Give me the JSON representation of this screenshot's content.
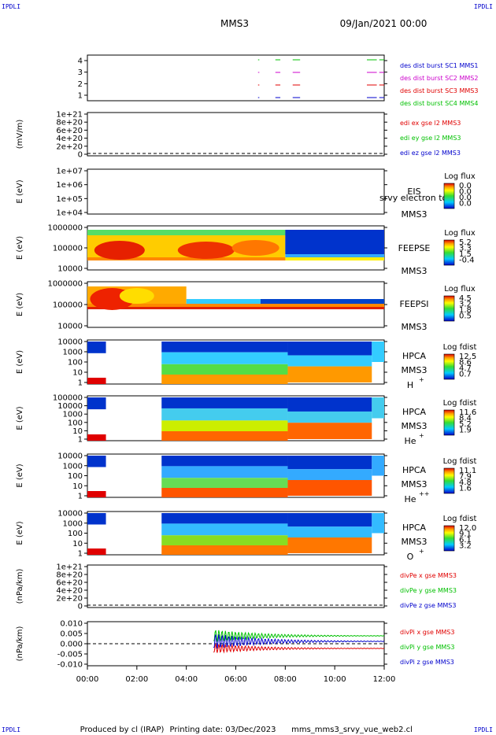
{
  "corner_label": "IPDLI",
  "header": {
    "title": "MMS3",
    "date": "09/Jan/2021 00:00"
  },
  "footer": {
    "produced_by": "Produced by cl (IRAP)",
    "printing_date": "Printing date: 03/Dec/2023",
    "script": "mms_mms3_srvy_vue_web2.cl"
  },
  "time_axis": [
    "00:00",
    "02:00",
    "04:00",
    "06:00",
    "08:00",
    "10:00",
    "12:00"
  ],
  "colors": {
    "black": "#000000",
    "red": "#e00000",
    "green": "#00c000",
    "blue": "#0000cc",
    "magenta": "#cc00cc"
  },
  "chart_data": [
    {
      "type": "line",
      "panel": "burst",
      "yticks": [
        "4",
        "3",
        "2",
        "1"
      ],
      "legend": [
        {
          "text": "des dist burst SC1 MMS1",
          "color": "#0000cc"
        },
        {
          "text": "des dist burst SC2 MMS2",
          "color": "#cc00cc"
        },
        {
          "text": "des dist burst SC3 MMS3",
          "color": "#e00000"
        },
        {
          "text": "des dist burst SC4 MMS4",
          "color": "#00c000"
        }
      ]
    },
    {
      "type": "line",
      "panel": "edi",
      "ylabel": "(mV/m)",
      "yticks": [
        "1e+21",
        "8e+20",
        "6e+20",
        "4e+20",
        "2e+20",
        "0"
      ],
      "legend": [
        {
          "text": "edi ex gse l2 MMS3",
          "color": "#e00000"
        },
        {
          "text": "edi ey gse l2 MMS3",
          "color": "#00c000"
        },
        {
          "text": "edi ez gse l2 MMS3",
          "color": "#0000cc"
        }
      ]
    },
    {
      "type": "heatmap",
      "panel": "eis",
      "ylabel": "E (eV)",
      "yticks": [
        "1e+07",
        "1e+06",
        "1e+05",
        "1e+04"
      ],
      "labels": [
        "EIS",
        "MMS3"
      ],
      "overlay": "srvy electron to",
      "colorbar": {
        "title": "Log flux",
        "ticks": [
          "0.0",
          "0.0",
          "0.0",
          "0.0"
        ]
      }
    },
    {
      "type": "heatmap",
      "panel": "feepse",
      "ylabel": "E (eV)",
      "yticks": [
        "1000000",
        "100000",
        "10000"
      ],
      "labels": [
        "FEEPSE",
        "MMS3"
      ],
      "colorbar": {
        "title": "Log flux",
        "ticks": [
          "5.2",
          "3.3",
          "1.5",
          "-0.4"
        ]
      }
    },
    {
      "type": "heatmap",
      "panel": "feepsi",
      "ylabel": "E (eV)",
      "yticks": [
        "1000000",
        "100000",
        "10000"
      ],
      "labels": [
        "FEEPSI",
        "MMS3"
      ],
      "colorbar": {
        "title": "Log flux",
        "ticks": [
          "4.5",
          "3.2",
          "1.8",
          "0.5"
        ]
      }
    },
    {
      "type": "heatmap",
      "panel": "hpca_h",
      "ylabel": "E (eV)",
      "yticks": [
        "10000",
        "1000",
        "100",
        "10",
        "1"
      ],
      "labels": [
        "HPCA",
        "MMS3",
        "H",
        "+"
      ],
      "colorbar": {
        "title": "Log fdist",
        "ticks": [
          "12.5",
          "8.6",
          "4.7",
          "0.7"
        ]
      }
    },
    {
      "type": "heatmap",
      "panel": "hpca_he",
      "ylabel": "E (eV)",
      "yticks": [
        "100000",
        "10000",
        "1000",
        "100",
        "10",
        "1"
      ],
      "labels": [
        "HPCA",
        "MMS3",
        "He",
        "+"
      ],
      "colorbar": {
        "title": "Log fdist",
        "ticks": [
          "11.6",
          "8.4",
          "5.2",
          "1.9"
        ]
      }
    },
    {
      "type": "heatmap",
      "panel": "hpca_hepp",
      "ylabel": "E (eV)",
      "yticks": [
        "10000",
        "1000",
        "100",
        "10",
        "1"
      ],
      "labels": [
        "HPCA",
        "MMS3",
        "He",
        "++"
      ],
      "colorbar": {
        "title": "Log fdist",
        "ticks": [
          "11.1",
          "7.9",
          "4.8",
          "1.6"
        ]
      }
    },
    {
      "type": "heatmap",
      "panel": "hpca_o",
      "ylabel": "E (eV)",
      "yticks": [
        "10000",
        "1000",
        "100",
        "10",
        "1"
      ],
      "labels": [
        "HPCA",
        "MMS3",
        "O",
        "+"
      ],
      "colorbar": {
        "title": "Log fdist",
        "ticks": [
          "12.0",
          "9.1",
          "6.1",
          "3.2"
        ]
      }
    },
    {
      "type": "line",
      "panel": "divpe",
      "ylabel": "(nPa/km)",
      "yticks": [
        "1e+21",
        "8e+20",
        "6e+20",
        "4e+20",
        "2e+20",
        "0"
      ],
      "legend": [
        {
          "text": "divPe x gse MMS3",
          "color": "#e00000"
        },
        {
          "text": "divPe y gse MMS3",
          "color": "#00c000"
        },
        {
          "text": "divPe z gse MMS3",
          "color": "#0000cc"
        }
      ]
    },
    {
      "type": "line",
      "panel": "divpi",
      "ylabel": "(nPa/km)",
      "yticks": [
        "0.010",
        "0.005",
        "0.000",
        "-0.005",
        "-0.010"
      ],
      "legend": [
        {
          "text": "divPi x gse MMS3",
          "color": "#e00000"
        },
        {
          "text": "divPi y gse MMS3",
          "color": "#00c000"
        },
        {
          "text": "divPi z gse MMS3",
          "color": "#0000cc"
        }
      ]
    }
  ]
}
